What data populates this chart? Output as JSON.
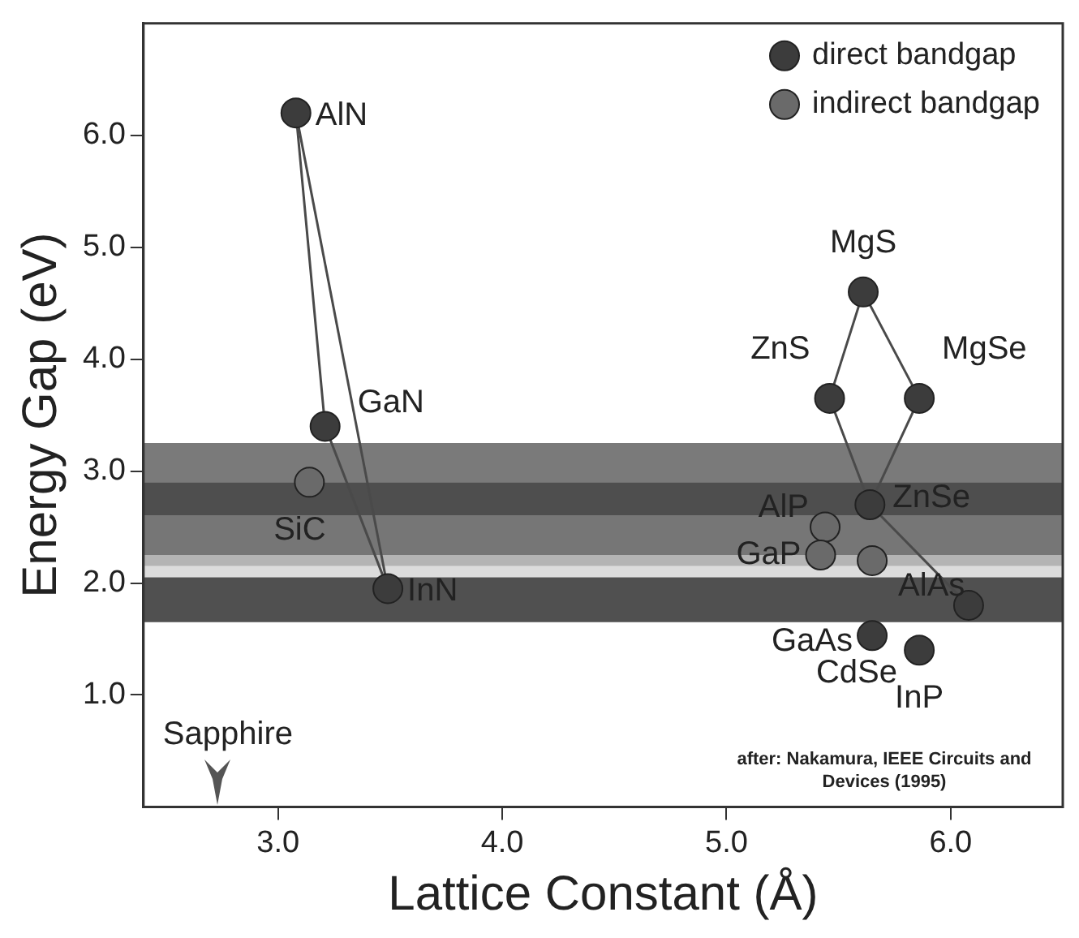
{
  "chart_data": {
    "type": "scatter",
    "xlabel": "Lattice Constant (Å)",
    "ylabel": "Energy Gap (eV)",
    "xlim": [
      2.4,
      6.5
    ],
    "xticks": [
      {
        "value": 3,
        "label": "3.0"
      },
      {
        "value": 4,
        "label": "4.0"
      },
      {
        "value": 5,
        "label": "5.0"
      },
      {
        "value": 6,
        "label": "6.0"
      }
    ],
    "ylim": [
      0,
      7
    ],
    "yticks": [
      {
        "value": 1,
        "label": "1.0"
      },
      {
        "value": 2,
        "label": "2.0"
      },
      {
        "value": 3,
        "label": "3.0"
      },
      {
        "value": 4,
        "label": "4.0"
      },
      {
        "value": 5,
        "label": "5.0"
      },
      {
        "value": 6,
        "label": "6.0"
      }
    ],
    "grid": false,
    "legend": "top right",
    "marker": "circle",
    "series": [
      {
        "type": "line",
        "color": "#4a4a4a",
        "marker": "none",
        "x": [
          3.08,
          3.21,
          3.49
        ],
        "values": [
          6.2,
          3.4,
          1.95
        ]
      },
      {
        "type": "line",
        "color": "#4a4a4a",
        "marker": "none",
        "x": [
          3.08,
          3.49
        ],
        "values": [
          6.2,
          1.95
        ]
      },
      {
        "type": "line",
        "color": "#4a4a4a",
        "marker": "none",
        "x": [
          5.46,
          5.61,
          5.86
        ],
        "values": [
          3.65,
          4.6,
          3.65
        ]
      },
      {
        "type": "line",
        "color": "#4a4a4a",
        "marker": "none",
        "x": [
          5.46,
          5.64,
          6.08
        ],
        "values": [
          3.65,
          2.7,
          1.8
        ]
      },
      {
        "type": "line",
        "color": "#4a4a4a",
        "marker": "none",
        "x": [
          5.64,
          5.86
        ],
        "values": [
          2.7,
          3.65
        ]
      },
      {
        "name": "direct bandgap",
        "color": "#3c3c3c",
        "x": [
          3.08,
          3.21,
          3.49,
          5.61,
          5.46,
          5.86,
          5.64,
          6.08,
          5.65,
          5.86
        ],
        "values": [
          6.2,
          3.4,
          1.95,
          4.6,
          3.65,
          3.65,
          2.7,
          1.8,
          1.53,
          1.4
        ]
      },
      {
        "name": "indirect bandgap",
        "color": "#6a6a6a",
        "x": [
          3.14,
          5.44,
          5.42,
          5.65
        ],
        "values": [
          2.9,
          2.5,
          2.25,
          2.2
        ]
      }
    ],
    "bands": [
      {
        "axis": "y",
        "from": 2.9,
        "to": 3.25,
        "color": "#7a7a7a"
      },
      {
        "axis": "y",
        "from": 2.6,
        "to": 2.9,
        "color": "#4e4e4e"
      },
      {
        "axis": "y",
        "from": 2.25,
        "to": 2.6,
        "color": "#767676"
      },
      {
        "axis": "y",
        "from": 2.15,
        "to": 2.25,
        "color": "#b4b4b4"
      },
      {
        "axis": "y",
        "from": 2.05,
        "to": 2.15,
        "color": "#dcdcdc"
      },
      {
        "axis": "y",
        "from": 1.65,
        "to": 2.05,
        "color": "#505050"
      }
    ],
    "annotations": [
      {
        "text": "AlN",
        "x": 3.08,
        "y": 6.2
      },
      {
        "text": "GaN",
        "x": 3.21,
        "y": 3.4
      },
      {
        "text": "SiC",
        "x": 3.14,
        "y": 2.9
      },
      {
        "text": "InN",
        "x": 3.49,
        "y": 1.95
      },
      {
        "text": "MgS",
        "x": 5.61,
        "y": 4.6
      },
      {
        "text": "ZnS",
        "x": 5.46,
        "y": 3.65
      },
      {
        "text": "MgSe",
        "x": 5.86,
        "y": 3.65
      },
      {
        "text": "ZnSe",
        "x": 5.64,
        "y": 2.7
      },
      {
        "text": "AlP",
        "x": 5.44,
        "y": 2.5
      },
      {
        "text": "GaP",
        "x": 5.42,
        "y": 2.25
      },
      {
        "text": "AlAs",
        "x": 5.65,
        "y": 2.2
      },
      {
        "text": "CdSe",
        "x": 6.08,
        "y": 1.8
      },
      {
        "text": "GaAs",
        "x": 5.65,
        "y": 1.53
      },
      {
        "text": "InP",
        "x": 5.86,
        "y": 1.4
      },
      "Sapphire",
      "after: Nakamura, IEEE Circuits and Devices (1995)"
    ]
  }
}
